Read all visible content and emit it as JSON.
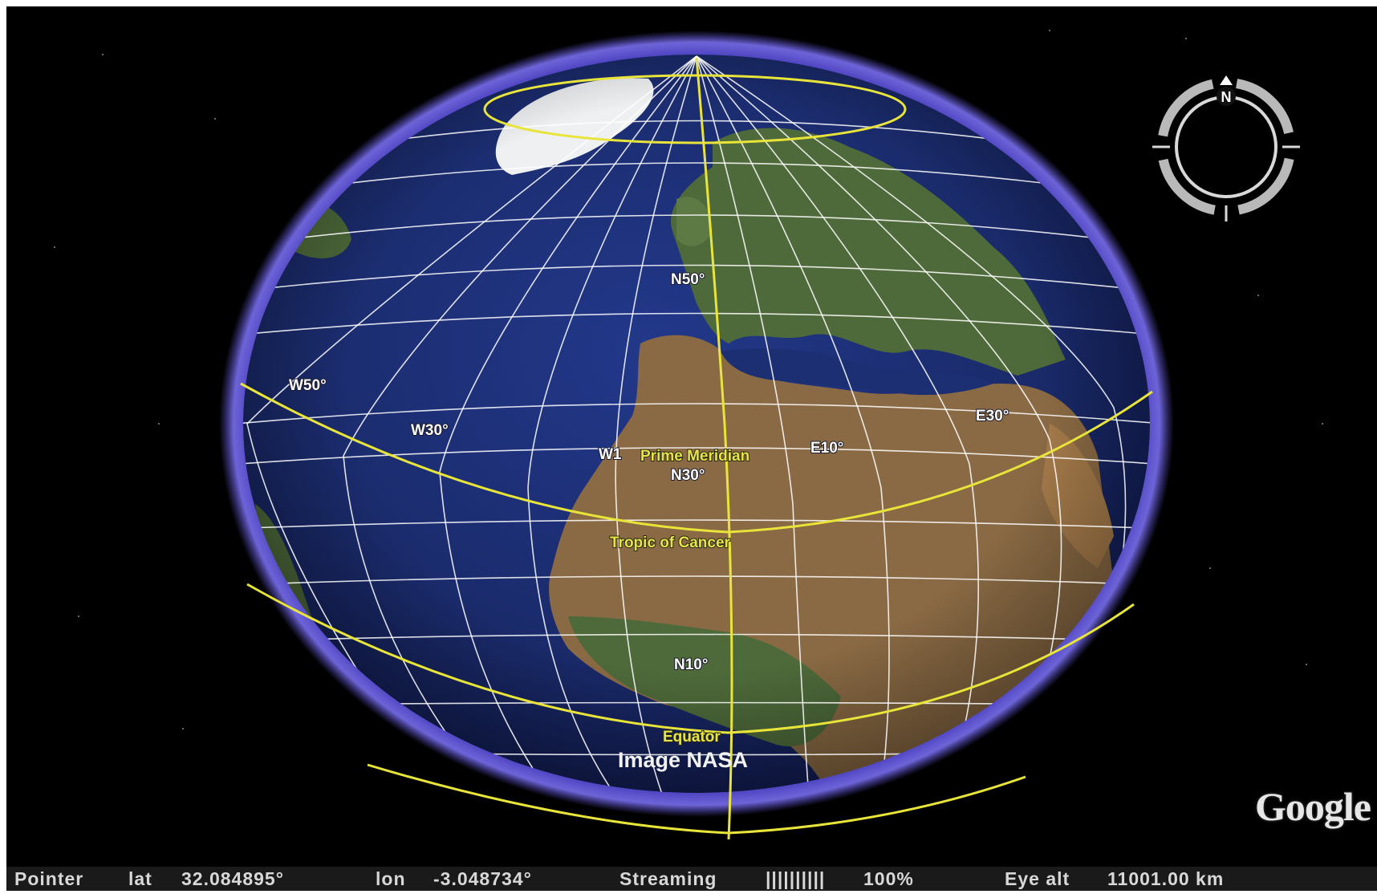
{
  "map": {
    "grid_labels": {
      "n50": "N50°",
      "n30": "N30°",
      "n10": "N10°",
      "w50": "W50°",
      "w30": "W30°",
      "w10": "W1",
      "e10": "E10°",
      "e30": "E30°"
    },
    "special_lines": {
      "prime_meridian": "Prime Meridian",
      "tropic_of_cancer": "Tropic of Cancer",
      "equator": "Equator"
    },
    "image_credit": "Image NASA",
    "compass_label": "N",
    "logo": "Google",
    "colors": {
      "space": "#000000",
      "ocean": "#1c2f72",
      "atmosphere": "#5b4fd0",
      "grid": "#ffffff",
      "highlight_lines": "#e8e43a"
    }
  },
  "status_bar": {
    "pointer_label": "Pointer",
    "lat_label": "lat",
    "lat_value": "32.084895°",
    "lon_label": "lon",
    "lon_value": "-3.048734°",
    "streaming_label": "Streaming",
    "streaming_bar": "||||||||||",
    "streaming_percent": "100%",
    "eye_alt_label": "Eye alt",
    "eye_alt_value": "11001.00 km"
  }
}
